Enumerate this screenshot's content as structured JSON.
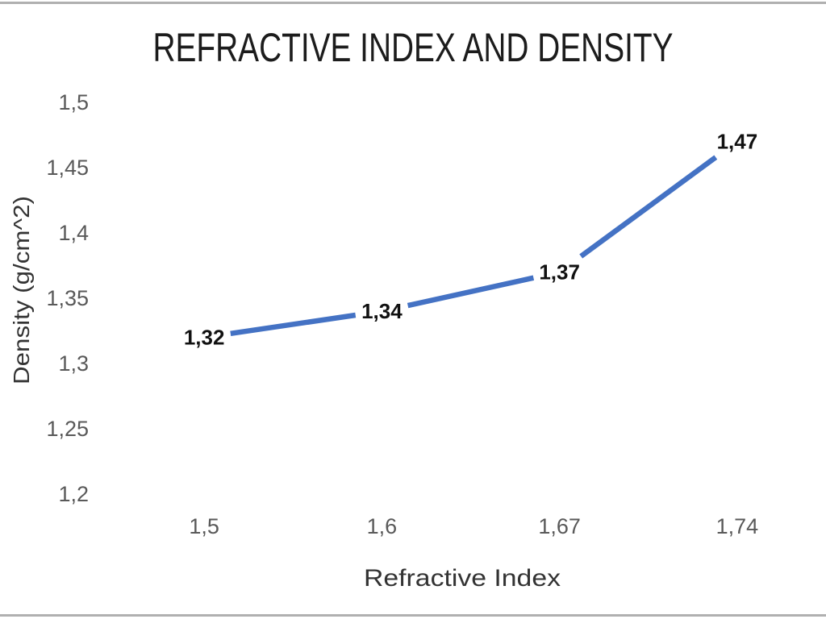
{
  "page": {
    "background_color": "#ffffff",
    "edge_line_color": "#b0b0b0"
  },
  "chart_data": {
    "type": "line",
    "title": "REFRACTIVE INDEX AND DENSITY",
    "xlabel": "Refractive Index",
    "ylabel": "Density (g/cm^2)",
    "categories": [
      "1,5",
      "1,6",
      "1,67",
      "1,74"
    ],
    "x_values": [
      1.5,
      1.6,
      1.67,
      1.74
    ],
    "values": [
      1.32,
      1.34,
      1.37,
      1.47
    ],
    "point_labels": [
      "1,32",
      "1,34",
      "1,37",
      "1,47"
    ],
    "ylim": [
      1.2,
      1.5
    ],
    "y_tick_step": 0.05,
    "y_tick_labels": [
      "1,5",
      "1,45",
      "1,4",
      "1,35",
      "1,3",
      "1,25",
      "1,2"
    ],
    "grid": false,
    "legend": false,
    "line_color": "#4472C4",
    "data_label_color": "#111111",
    "tick_label_color": "#595959",
    "title_color": "#1c1c1c",
    "axis_title_color": "#333333"
  }
}
